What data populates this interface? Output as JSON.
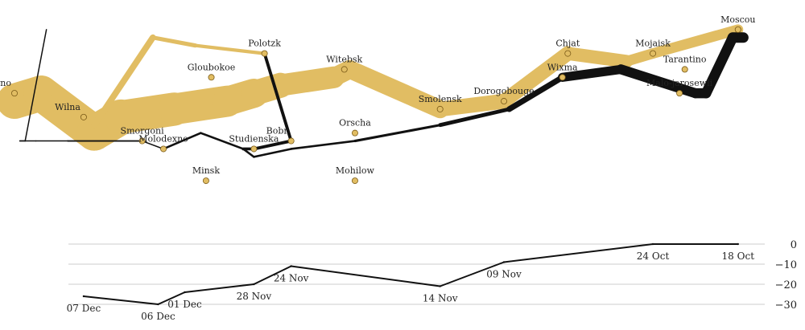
{
  "colors": {
    "advance": "#e1bd63",
    "retreat": "#111111",
    "city_marker": "#e1bd63",
    "city_marker_stroke": "#7a5a17",
    "grid": "#cccccc",
    "temp_line": "#111111"
  },
  "chart_data": [
    {
      "type": "flow-map",
      "title": "",
      "coord_units": "degrees",
      "lon_range": [
        24.0,
        37.8
      ],
      "lat_range": [
        53.8,
        55.95
      ],
      "advance_path": [
        {
          "lon": 24.0,
          "lat": 54.9,
          "survivors": 340000
        },
        {
          "lon": 24.5,
          "lat": 55.0,
          "survivors": 340000
        },
        {
          "lon": 25.5,
          "lat": 54.5,
          "survivors": 340000
        },
        {
          "lon": 26.0,
          "lat": 54.7,
          "survivors": 320000
        },
        {
          "lon": 27.0,
          "lat": 54.8,
          "survivors": 300000
        },
        {
          "lon": 28.0,
          "lat": 54.9,
          "survivors": 280000
        },
        {
          "lon": 28.5,
          "lat": 55.0,
          "survivors": 240000
        },
        {
          "lon": 29.0,
          "lat": 55.1,
          "survivors": 210000
        },
        {
          "lon": 30.0,
          "lat": 55.2,
          "survivors": 180000
        },
        {
          "lon": 30.3,
          "lat": 55.3,
          "survivors": 175000
        },
        {
          "lon": 32.0,
          "lat": 54.8,
          "survivors": 145000
        },
        {
          "lon": 33.2,
          "lat": 54.9,
          "survivors": 140000
        },
        {
          "lon": 34.4,
          "lat": 55.5,
          "survivors": 127100
        },
        {
          "lon": 35.5,
          "lat": 55.4,
          "survivors": 100000
        },
        {
          "lon": 36.0,
          "lat": 55.5,
          "survivors": 100000
        },
        {
          "lon": 37.6,
          "lat": 55.8,
          "survivors": 100000
        }
      ],
      "advance_branch_path": [
        {
          "lon": 24.5,
          "lat": 55.0,
          "survivors": 60000
        },
        {
          "lon": 25.5,
          "lat": 54.6,
          "survivors": 60000
        },
        {
          "lon": 26.6,
          "lat": 55.7,
          "survivors": 40000
        },
        {
          "lon": 27.4,
          "lat": 55.6,
          "survivors": 33000
        },
        {
          "lon": 28.7,
          "lat": 55.5,
          "survivors": 33000
        }
      ],
      "retreat_path": [
        {
          "lon": 37.7,
          "lat": 55.7,
          "survivors": 100000
        },
        {
          "lon": 37.5,
          "lat": 55.7,
          "survivors": 98000
        },
        {
          "lon": 37.0,
          "lat": 55.0,
          "survivors": 97000
        },
        {
          "lon": 36.8,
          "lat": 55.0,
          "survivors": 96000
        },
        {
          "lon": 35.4,
          "lat": 55.3,
          "survivors": 87000
        },
        {
          "lon": 34.3,
          "lat": 55.2,
          "survivors": 55000
        },
        {
          "lon": 33.3,
          "lat": 54.8,
          "survivors": 37000
        },
        {
          "lon": 32.0,
          "lat": 54.6,
          "survivors": 24000
        },
        {
          "lon": 30.4,
          "lat": 54.4,
          "survivors": 20000
        },
        {
          "lon": 29.2,
          "lat": 54.3,
          "survivors": 20000
        },
        {
          "lon": 28.5,
          "lat": 54.2,
          "survivors": 20000
        },
        {
          "lon": 28.3,
          "lat": 54.3,
          "survivors": 20000
        },
        {
          "lon": 27.5,
          "lat": 54.5,
          "survivors": 20000
        },
        {
          "lon": 26.8,
          "lat": 54.3,
          "survivors": 12000
        },
        {
          "lon": 26.4,
          "lat": 54.4,
          "survivors": 14000
        },
        {
          "lon": 25.0,
          "lat": 54.4,
          "survivors": 8000
        },
        {
          "lon": 24.4,
          "lat": 54.4,
          "survivors": 4000
        },
        {
          "lon": 24.2,
          "lat": 54.4,
          "survivors": 4000
        },
        {
          "lon": 24.1,
          "lat": 54.4,
          "survivors": 4000
        }
      ],
      "retreat_branch_path": [
        {
          "lon": 28.7,
          "lat": 55.5,
          "survivors": 30000
        },
        {
          "lon": 29.2,
          "lat": 54.4,
          "survivors": 30000
        },
        {
          "lon": 28.5,
          "lat": 54.3,
          "survivors": 28000
        },
        {
          "lon": 28.3,
          "lat": 54.3,
          "survivors": 28000
        }
      ],
      "retreat_side_path": [
        {
          "lon": 24.6,
          "lat": 55.8,
          "survivors": 6000
        },
        {
          "lon": 24.2,
          "lat": 54.4,
          "survivors": 6000
        },
        {
          "lon": 24.1,
          "lat": 54.4,
          "survivors": 6000
        }
      ],
      "cities": [
        {
          "name": "Kowno",
          "lon": 24.0,
          "lat": 55.0,
          "label_pos": "above-left"
        },
        {
          "name": "Wilna",
          "lon": 25.3,
          "lat": 54.7,
          "label_pos": "above-left"
        },
        {
          "name": "Smorgoni",
          "lon": 26.4,
          "lat": 54.4,
          "label_pos": "above"
        },
        {
          "name": "Molodexno",
          "lon": 26.8,
          "lat": 54.3,
          "label_pos": "above"
        },
        {
          "name": "Gloubokoe",
          "lon": 27.7,
          "lat": 55.2,
          "label_pos": "above"
        },
        {
          "name": "Minsk",
          "lon": 27.6,
          "lat": 53.9,
          "label_pos": "above"
        },
        {
          "name": "Studienska",
          "lon": 28.5,
          "lat": 54.3,
          "label_pos": "above"
        },
        {
          "name": "Polotzk",
          "lon": 28.7,
          "lat": 55.5,
          "label_pos": "above"
        },
        {
          "name": "Bobr",
          "lon": 29.2,
          "lat": 54.4,
          "label_pos": "above-left"
        },
        {
          "name": "Witebsk",
          "lon": 30.2,
          "lat": 55.3,
          "label_pos": "above"
        },
        {
          "name": "Orscha",
          "lon": 30.4,
          "lat": 54.5,
          "label_pos": "above"
        },
        {
          "name": "Mohilow",
          "lon": 30.4,
          "lat": 53.9,
          "label_pos": "above"
        },
        {
          "name": "Smolensk",
          "lon": 32.0,
          "lat": 54.8,
          "label_pos": "above"
        },
        {
          "name": "Dorogobouge",
          "lon": 33.2,
          "lat": 54.9,
          "label_pos": "above"
        },
        {
          "name": "Wixma",
          "lon": 34.3,
          "lat": 55.2,
          "label_pos": "above"
        },
        {
          "name": "Chjat",
          "lon": 34.4,
          "lat": 55.5,
          "label_pos": "above"
        },
        {
          "name": "Mojaisk",
          "lon": 36.0,
          "lat": 55.5,
          "label_pos": "above"
        },
        {
          "name": "Moscou",
          "lon": 37.6,
          "lat": 55.8,
          "label_pos": "above"
        },
        {
          "name": "Tarantino",
          "lon": 36.6,
          "lat": 55.3,
          "label_pos": "above"
        },
        {
          "name": "Malo-jarosewli",
          "lon": 36.5,
          "lat": 55.0,
          "label_pos": "above"
        }
      ]
    },
    {
      "type": "line",
      "title": "",
      "xlabel": "",
      "ylabel": "",
      "x_units": "longitude",
      "xlim": [
        24.0,
        37.8
      ],
      "ylim": [
        -30,
        0
      ],
      "yticks": [
        0,
        -10,
        -20,
        -30
      ],
      "ytick_labels": [
        "0",
        "−10",
        "−20",
        "−30"
      ],
      "y_axis_side": "right",
      "grid": true,
      "points": [
        {
          "lon": 37.6,
          "temp": 0,
          "label": "18 Oct"
        },
        {
          "lon": 36.0,
          "temp": 0,
          "label": "24 Oct"
        },
        {
          "lon": 33.2,
          "temp": -9,
          "label": "09 Nov"
        },
        {
          "lon": 32.0,
          "temp": -21,
          "label": "14 Nov"
        },
        {
          "lon": 29.2,
          "temp": -11,
          "label": "24 Nov"
        },
        {
          "lon": 28.5,
          "temp": -20,
          "label": "28 Nov"
        },
        {
          "lon": 27.2,
          "temp": -24,
          "label": "01 Dec"
        },
        {
          "lon": 26.7,
          "temp": -30,
          "label": "06 Dec"
        },
        {
          "lon": 25.3,
          "temp": -26,
          "label": "07 Dec"
        }
      ]
    }
  ]
}
